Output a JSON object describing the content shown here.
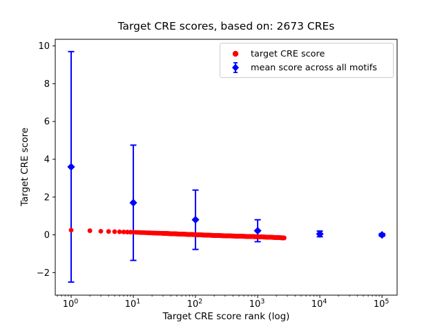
{
  "chart_data": {
    "type": "scatter",
    "title": "Target CRE scores, based on: 2673 CREs",
    "xlabel": "Target CRE score rank (log)",
    "ylabel": "Target CRE score",
    "x_scale": "log",
    "xlim": [
      0.555,
      175000
    ],
    "ylim": [
      -3.19,
      10.35
    ],
    "yticks": [
      -2,
      0,
      2,
      4,
      6,
      8,
      10
    ],
    "ytick_labels": [
      "−2",
      "0",
      "2",
      "4",
      "6",
      "8",
      "10"
    ],
    "xticks": [
      1,
      10,
      100,
      1000,
      10000,
      100000
    ],
    "xtick_base": "10",
    "xtick_exponents": [
      "0",
      "1",
      "2",
      "3",
      "4",
      "5"
    ],
    "grid": false,
    "legend_position": "upper right",
    "colors": {
      "target": "#ff0000",
      "mean": "#0000ff",
      "axis": "#000000",
      "legend_border": "#cccccc"
    },
    "series": [
      {
        "name": "target CRE score",
        "marker": "circle",
        "color": "#ff0000",
        "n_points": 2673,
        "note": "score vs rank, read from plot; anchors interpolated linearly in log10(rank)",
        "rank_score_anchors": [
          [
            1,
            0.25
          ],
          [
            2,
            0.22
          ],
          [
            3,
            0.19
          ],
          [
            4,
            0.18
          ],
          [
            5,
            0.17
          ],
          [
            7,
            0.155
          ],
          [
            10,
            0.14
          ],
          [
            20,
            0.1
          ],
          [
            30,
            0.08
          ],
          [
            50,
            0.05
          ],
          [
            100,
            0.01
          ],
          [
            200,
            -0.03
          ],
          [
            500,
            -0.07
          ],
          [
            1000,
            -0.1
          ],
          [
            2000,
            -0.14
          ],
          [
            2673,
            -0.16
          ]
        ]
      },
      {
        "name": "mean score across all motifs",
        "marker": "diamond",
        "color": "#0000ff",
        "x": [
          1,
          10,
          100,
          1000,
          10000,
          100000
        ],
        "y": [
          3.6,
          1.7,
          0.8,
          0.22,
          0.05,
          0.0
        ],
        "yerr": [
          6.1,
          3.05,
          1.57,
          0.58,
          0.15,
          0.07
        ]
      }
    ]
  }
}
